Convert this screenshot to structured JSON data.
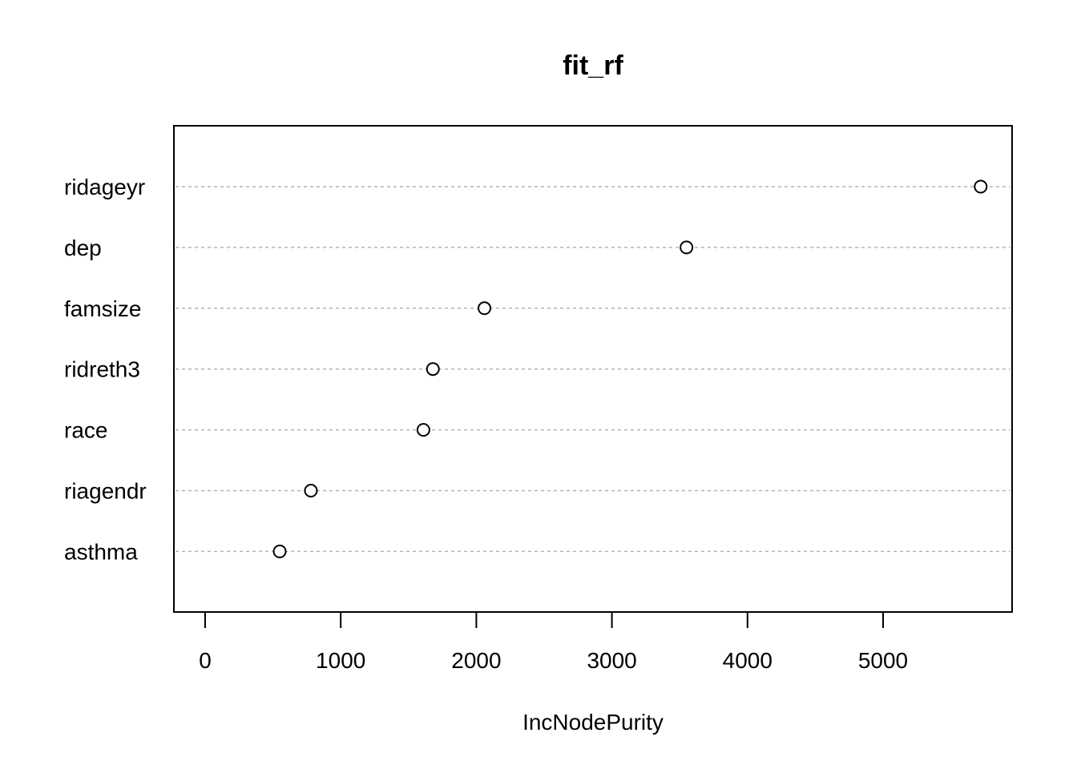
{
  "chart_data": {
    "type": "scatter",
    "title": "fit_rf",
    "xlabel": "IncNodePurity",
    "ylabel": "",
    "xlim": [
      0,
      5900
    ],
    "x_ticks": [
      0,
      1000,
      2000,
      3000,
      4000,
      5000
    ],
    "grid": "horizontal dotted",
    "categories": [
      "ridageyr",
      "dep",
      "famsize",
      "ridreth3",
      "race",
      "riagendr",
      "asthma"
    ],
    "values": [
      5720,
      3550,
      2060,
      1680,
      1610,
      780,
      550
    ]
  }
}
